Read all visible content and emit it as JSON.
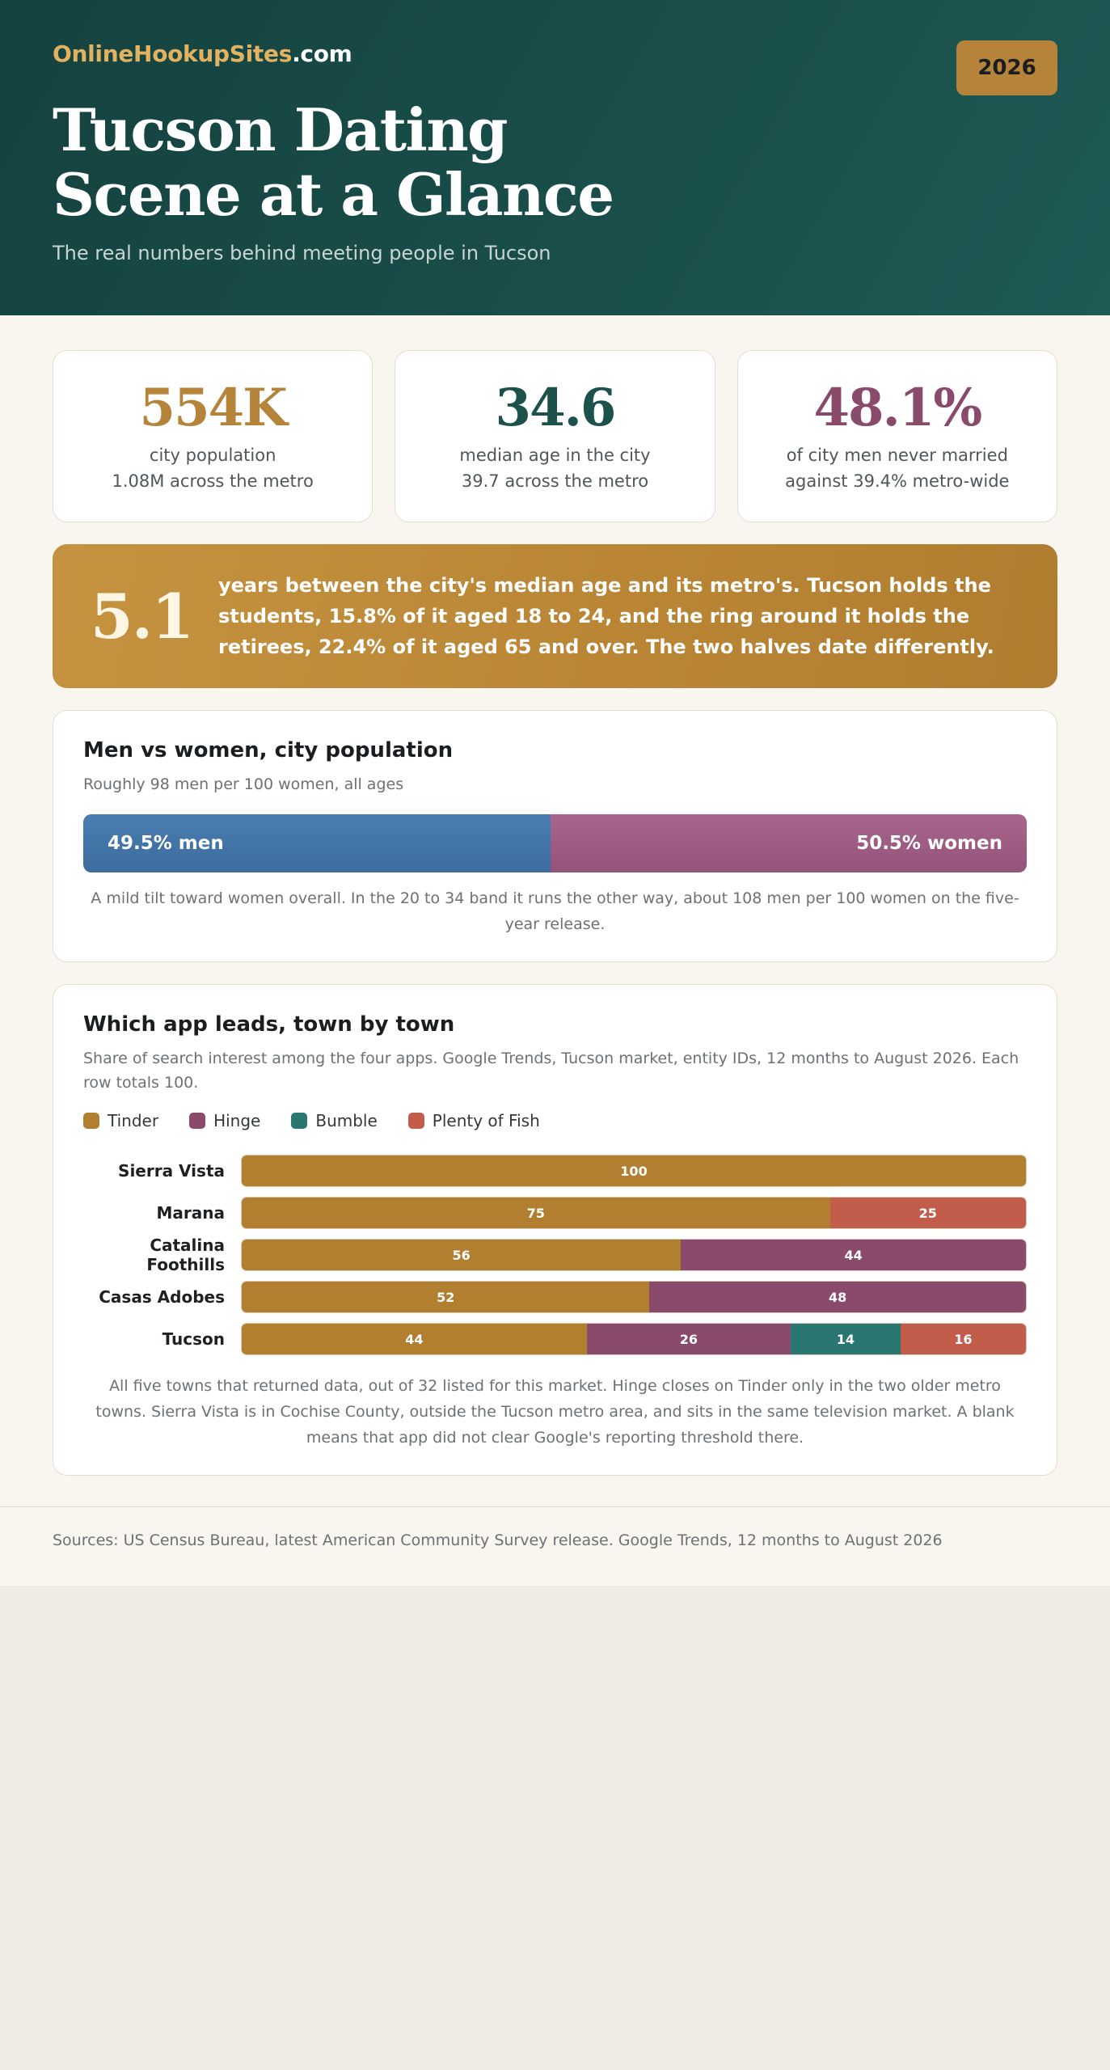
{
  "header": {
    "brand_part1": "OnlineHookupSites",
    "brand_part2": ".com",
    "year": "2026",
    "title_line1": "Tucson Dating",
    "title_line2": "Scene at a Glance",
    "subtitle": "The real numbers behind meeting people in Tucson"
  },
  "stats": [
    {
      "value": "554K",
      "line1": "city population",
      "line2": "1.08M across the metro",
      "color": "#b5843a"
    },
    {
      "value": "34.6",
      "line1": "median age in the city",
      "line2": "39.7 across the metro",
      "color": "#1d514c"
    },
    {
      "value": "48.1%",
      "line1": "of city men never married",
      "line2": "against 39.4% metro-wide",
      "color": "#8a4a6c"
    }
  ],
  "callout": {
    "number": "5.1",
    "text": "years between the city's median age and its metro's. Tucson holds the students, 15.8% of it aged 18 to 24, and the ring around it holds the retirees, 22.4% of it aged 65 and over. The two halves date differently."
  },
  "sex_card": {
    "title": "Men vs women, city population",
    "subtitle": "Roughly 98 men per 100 women, all ages",
    "men_label": "49.5% men",
    "women_label": "50.5% women",
    "note": "A mild tilt toward women overall. In the 20 to 34 band it runs the other way, about 108 men per 100 women on the five-year release."
  },
  "app_card": {
    "title": "Which app leads, town by town",
    "subtitle": "Share of search interest among the four apps. Google Trends, Tucson market, entity IDs, 12 months to August 2026. Each row totals 100.",
    "note": "All five towns that returned data, out of 32 listed for this market. Hinge closes on Tinder only in the two older metro towns. Sierra Vista is in Cochise County, outside the Tucson metro area, and sits in the same television market. A blank means that app did not clear Google's reporting threshold there."
  },
  "chart_data": [
    {
      "type": "bar",
      "orientation": "horizontal",
      "stacked": true,
      "categories": [
        "City population"
      ],
      "series": [
        {
          "name": "men",
          "values": [
            49.5
          ],
          "color": "#4276a8"
        },
        {
          "name": "women",
          "values": [
            50.5
          ],
          "color": "#9e5d84"
        }
      ]
    },
    {
      "type": "bar",
      "orientation": "horizontal",
      "stacked": true,
      "categories": [
        "Sierra Vista",
        "Marana",
        "Catalina Foothills",
        "Casas Adobes",
        "Tucson"
      ],
      "series": [
        {
          "name": "Tinder",
          "values": [
            100,
            75,
            56,
            52,
            44
          ],
          "color": "#b27f31"
        },
        {
          "name": "Hinge",
          "values": [
            null,
            null,
            44,
            48,
            26
          ],
          "color": "#8a4a6c"
        },
        {
          "name": "Bumble",
          "values": [
            null,
            null,
            null,
            null,
            14
          ],
          "color": "#2a7772"
        },
        {
          "name": "Plenty of Fish",
          "values": [
            null,
            25,
            null,
            null,
            16
          ],
          "color": "#c35d4b"
        }
      ],
      "xlim": [
        0,
        100
      ]
    }
  ],
  "footer": {
    "sources": "Sources: US Census Bureau, latest American Community Survey release. Google Trends, 12 months to August 2026"
  }
}
